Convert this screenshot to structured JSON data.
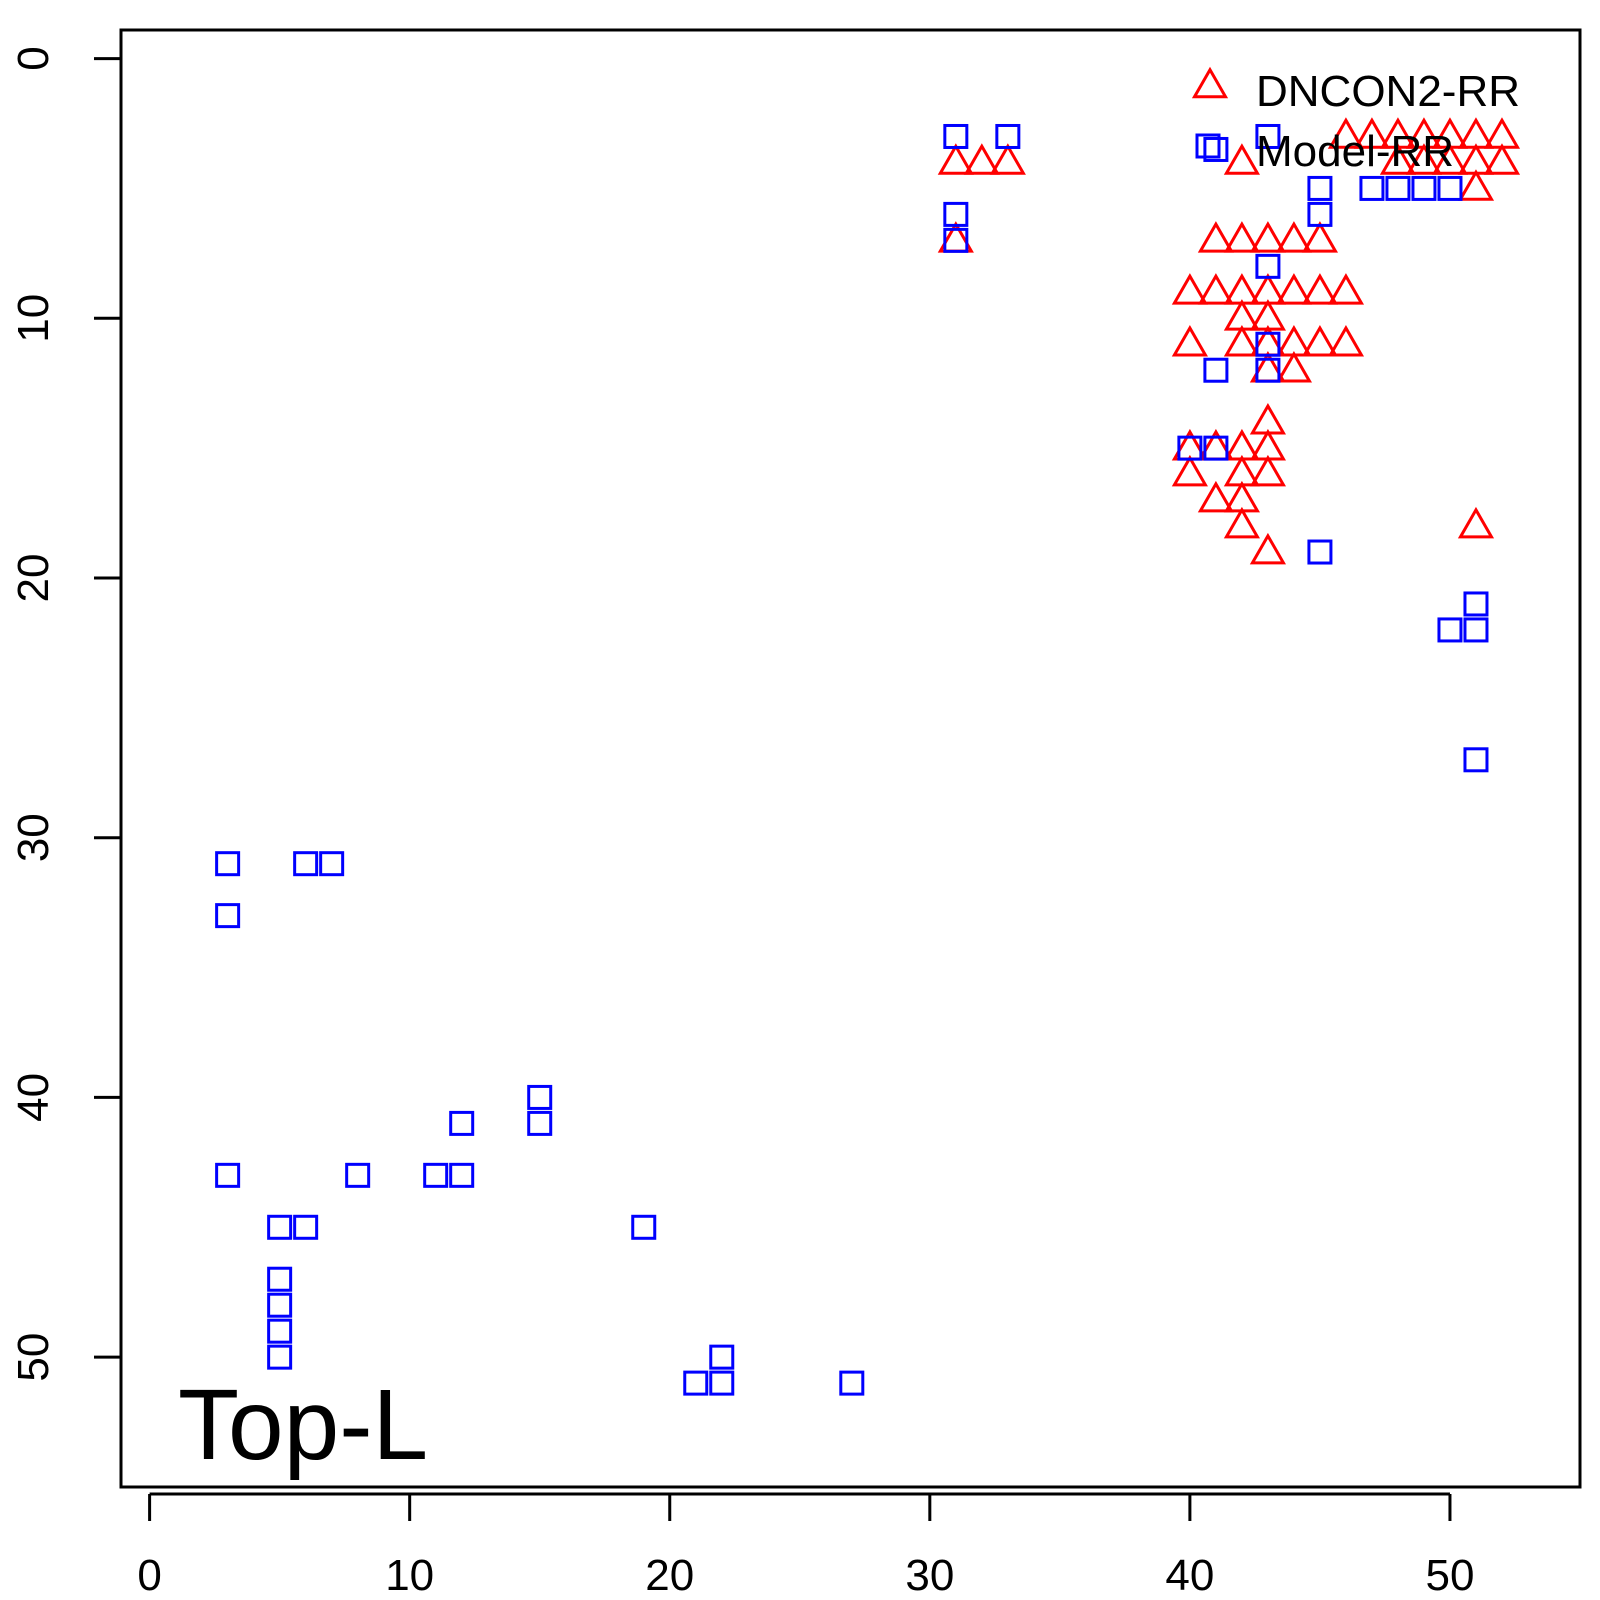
{
  "chart_data": {
    "type": "scatter",
    "title": "",
    "xlabel": "",
    "ylabel": "",
    "xlim": [
      -1.1,
      55
    ],
    "ylim": [
      55,
      -1.1
    ],
    "y_reversed": true,
    "xticks": [
      0,
      10,
      20,
      30,
      40,
      50
    ],
    "yticks": [
      0,
      10,
      20,
      30,
      40,
      50
    ],
    "grid": false,
    "legend_position": "top-right",
    "annotation": "Top-L",
    "series": [
      {
        "name": "DNCON2-RR",
        "color": "#ff0000",
        "marker": "triangle",
        "points": [
          [
            31,
            4
          ],
          [
            32,
            4
          ],
          [
            33,
            4
          ],
          [
            31,
            7
          ],
          [
            42,
            4
          ],
          [
            46,
            3
          ],
          [
            47,
            3
          ],
          [
            48,
            3
          ],
          [
            49,
            3
          ],
          [
            50,
            3
          ],
          [
            51,
            3
          ],
          [
            52,
            3
          ],
          [
            48,
            4
          ],
          [
            49,
            4
          ],
          [
            50,
            4
          ],
          [
            51,
            4
          ],
          [
            52,
            4
          ],
          [
            51,
            5
          ],
          [
            41,
            7
          ],
          [
            42,
            7
          ],
          [
            43,
            7
          ],
          [
            44,
            7
          ],
          [
            45,
            7
          ],
          [
            40,
            9
          ],
          [
            41,
            9
          ],
          [
            42,
            9
          ],
          [
            43,
            9
          ],
          [
            44,
            9
          ],
          [
            45,
            9
          ],
          [
            46,
            9
          ],
          [
            42,
            10
          ],
          [
            43,
            10
          ],
          [
            40,
            11
          ],
          [
            42,
            11
          ],
          [
            43,
            11
          ],
          [
            44,
            11
          ],
          [
            45,
            11
          ],
          [
            46,
            11
          ],
          [
            43,
            12
          ],
          [
            44,
            12
          ],
          [
            43,
            14
          ],
          [
            40,
            15
          ],
          [
            41,
            15
          ],
          [
            42,
            15
          ],
          [
            43,
            15
          ],
          [
            40,
            16
          ],
          [
            42,
            16
          ],
          [
            43,
            16
          ],
          [
            41,
            17
          ],
          [
            42,
            17
          ],
          [
            42,
            18
          ],
          [
            43,
            19
          ],
          [
            51,
            18
          ]
        ]
      },
      {
        "name": "Model-RR",
        "color": "#0000ff",
        "marker": "square",
        "points": [
          [
            31,
            3
          ],
          [
            33,
            3
          ],
          [
            31,
            6
          ],
          [
            31,
            7
          ],
          [
            43,
            3
          ],
          [
            41,
            3.5
          ],
          [
            45,
            5
          ],
          [
            45,
            6
          ],
          [
            47,
            5
          ],
          [
            48,
            5
          ],
          [
            49,
            5
          ],
          [
            50,
            5
          ],
          [
            43,
            8
          ],
          [
            43,
            11
          ],
          [
            43,
            12
          ],
          [
            41,
            12
          ],
          [
            40,
            15
          ],
          [
            41,
            15
          ],
          [
            45,
            19
          ],
          [
            51,
            21
          ],
          [
            50,
            22
          ],
          [
            51,
            22
          ],
          [
            51,
            27
          ],
          [
            3,
            31
          ],
          [
            6,
            31
          ],
          [
            7,
            31
          ],
          [
            3,
            33
          ],
          [
            15,
            40
          ],
          [
            12,
            41
          ],
          [
            15,
            41
          ],
          [
            3,
            43
          ],
          [
            8,
            43
          ],
          [
            11,
            43
          ],
          [
            12,
            43
          ],
          [
            5,
            45
          ],
          [
            6,
            45
          ],
          [
            19,
            45
          ],
          [
            5,
            47
          ],
          [
            5,
            48
          ],
          [
            5,
            49
          ],
          [
            5,
            50
          ],
          [
            22,
            50
          ],
          [
            21,
            51
          ],
          [
            22,
            51
          ],
          [
            27,
            51
          ]
        ]
      }
    ]
  }
}
